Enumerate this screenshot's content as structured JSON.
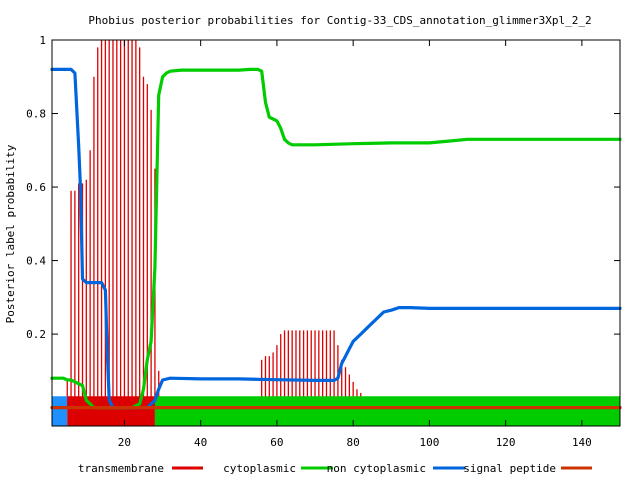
{
  "chart_data": {
    "type": "line",
    "title": "Phobius posterior probabilities for Contig-33_CDS_annotation_glimmer3Xpl_2_2",
    "xlabel": "",
    "ylabel": "Posterior label probability",
    "xlim": [
      1,
      150
    ],
    "ylim": [
      -0.05,
      1.0
    ],
    "x_ticks": [
      20,
      40,
      60,
      80,
      100,
      120,
      140
    ],
    "y_ticks": [
      0.2,
      0.4,
      0.6,
      0.8,
      1
    ],
    "y_tick_labels": [
      "0.2",
      "0.4",
      "0.6",
      "0.8",
      "1"
    ],
    "x_tick_labels": [
      "20",
      "40",
      "60",
      "80",
      "100",
      "120",
      "140"
    ],
    "legend_position": "bottom",
    "series": [
      {
        "name": "transmembrane",
        "style": "impulses",
        "color": "#dd0000",
        "points": [
          [
            5,
            0.08
          ],
          [
            6,
            0.59
          ],
          [
            7,
            0.59
          ],
          [
            8,
            0.61
          ],
          [
            9,
            0.61
          ],
          [
            10,
            0.62
          ],
          [
            11,
            0.7
          ],
          [
            12,
            0.9
          ],
          [
            13,
            0.98
          ],
          [
            14,
            1.0
          ],
          [
            15,
            1.0
          ],
          [
            16,
            1.0
          ],
          [
            17,
            1.0
          ],
          [
            18,
            1.0
          ],
          [
            19,
            1.0
          ],
          [
            20,
            1.0
          ],
          [
            21,
            1.0
          ],
          [
            22,
            1.0
          ],
          [
            23,
            1.0
          ],
          [
            24,
            0.98
          ],
          [
            25,
            0.9
          ],
          [
            26,
            0.88
          ],
          [
            27,
            0.81
          ],
          [
            28,
            0.65
          ],
          [
            29,
            0.1
          ],
          [
            30,
            0.03
          ],
          [
            31,
            0.02
          ],
          [
            32,
            0.02
          ],
          [
            33,
            0.02
          ],
          [
            34,
            0.02
          ],
          [
            35,
            0.02
          ],
          [
            36,
            0.02
          ],
          [
            37,
            0.02
          ],
          [
            38,
            0.02
          ],
          [
            39,
            0.02
          ],
          [
            40,
            0.02
          ],
          [
            41,
            0.02
          ],
          [
            42,
            0.02
          ],
          [
            43,
            0.02
          ],
          [
            44,
            0.02
          ],
          [
            45,
            0.02
          ],
          [
            46,
            0.02
          ],
          [
            47,
            0.02
          ],
          [
            48,
            0.02
          ],
          [
            49,
            0.02
          ],
          [
            50,
            0.02
          ],
          [
            51,
            0.02
          ],
          [
            52,
            0.02
          ],
          [
            53,
            0.02
          ],
          [
            54,
            0.02
          ],
          [
            55,
            0.02
          ],
          [
            56,
            0.13
          ],
          [
            57,
            0.14
          ],
          [
            58,
            0.14
          ],
          [
            59,
            0.15
          ],
          [
            60,
            0.17
          ],
          [
            61,
            0.2
          ],
          [
            62,
            0.21
          ],
          [
            63,
            0.21
          ],
          [
            64,
            0.21
          ],
          [
            65,
            0.21
          ],
          [
            66,
            0.21
          ],
          [
            67,
            0.21
          ],
          [
            68,
            0.21
          ],
          [
            69,
            0.21
          ],
          [
            70,
            0.21
          ],
          [
            71,
            0.21
          ],
          [
            72,
            0.21
          ],
          [
            73,
            0.21
          ],
          [
            74,
            0.21
          ],
          [
            75,
            0.21
          ],
          [
            76,
            0.17
          ],
          [
            77,
            0.13
          ],
          [
            78,
            0.11
          ],
          [
            79,
            0.09
          ],
          [
            80,
            0.07
          ],
          [
            81,
            0.05
          ],
          [
            82,
            0.04
          ],
          [
            83,
            0.03
          ],
          [
            84,
            0.02
          ],
          [
            85,
            0.02
          ],
          [
            86,
            0.02
          ],
          [
            87,
            0.02
          ],
          [
            88,
            0.02
          ],
          [
            89,
            0.02
          ],
          [
            90,
            0.02
          ],
          [
            91,
            0.02
          ],
          [
            92,
            0.02
          ],
          [
            93,
            0.02
          ],
          [
            94,
            0.02
          ],
          [
            95,
            0.02
          ],
          [
            96,
            0.02
          ],
          [
            97,
            0.02
          ],
          [
            98,
            0.02
          ],
          [
            99,
            0.02
          ],
          [
            100,
            0.02
          ],
          [
            101,
            0.02
          ],
          [
            102,
            0.02
          ],
          [
            103,
            0.02
          ],
          [
            104,
            0.02
          ],
          [
            105,
            0.01
          ],
          [
            106,
            0.01
          ],
          [
            107,
            0.01
          ],
          [
            108,
            0.01
          ]
        ]
      },
      {
        "name": "cytoplasmic",
        "style": "line",
        "color": "#00cc00",
        "points": [
          [
            1,
            0.08
          ],
          [
            4,
            0.08
          ],
          [
            5,
            0.075
          ],
          [
            6,
            0.075
          ],
          [
            7,
            0.07
          ],
          [
            9,
            0.06
          ],
          [
            10,
            0.02
          ],
          [
            11,
            0.01
          ],
          [
            12,
            0.0
          ],
          [
            22,
            0.0
          ],
          [
            24,
            0.01
          ],
          [
            25,
            0.05
          ],
          [
            26,
            0.13
          ],
          [
            27,
            0.18
          ],
          [
            28,
            0.38
          ],
          [
            29,
            0.85
          ],
          [
            30,
            0.9
          ],
          [
            31,
            0.91
          ],
          [
            32,
            0.915
          ],
          [
            35,
            0.918
          ],
          [
            40,
            0.918
          ],
          [
            45,
            0.918
          ],
          [
            50,
            0.918
          ],
          [
            53,
            0.92
          ],
          [
            55,
            0.92
          ],
          [
            56,
            0.915
          ],
          [
            57,
            0.83
          ],
          [
            58,
            0.79
          ],
          [
            59,
            0.785
          ],
          [
            60,
            0.78
          ],
          [
            61,
            0.76
          ],
          [
            62,
            0.73
          ],
          [
            63,
            0.72
          ],
          [
            64,
            0.715
          ],
          [
            70,
            0.715
          ],
          [
            80,
            0.718
          ],
          [
            90,
            0.72
          ],
          [
            100,
            0.72
          ],
          [
            105,
            0.725
          ],
          [
            110,
            0.73
          ],
          [
            120,
            0.73
          ],
          [
            130,
            0.73
          ],
          [
            140,
            0.73
          ],
          [
            150,
            0.73
          ]
        ]
      },
      {
        "name": "non cytoplasmic",
        "style": "line",
        "color": "#0066dd",
        "points": [
          [
            1,
            0.92
          ],
          [
            6,
            0.92
          ],
          [
            7,
            0.91
          ],
          [
            8,
            0.71
          ],
          [
            8.5,
            0.59
          ],
          [
            9,
            0.35
          ],
          [
            10,
            0.34
          ],
          [
            14,
            0.34
          ],
          [
            15,
            0.32
          ],
          [
            15.5,
            0.15
          ],
          [
            16,
            0.02
          ],
          [
            17,
            0.0
          ],
          [
            26,
            0.0
          ],
          [
            28,
            0.02
          ],
          [
            29,
            0.05
          ],
          [
            30,
            0.075
          ],
          [
            32,
            0.08
          ],
          [
            40,
            0.078
          ],
          [
            50,
            0.078
          ],
          [
            60,
            0.076
          ],
          [
            70,
            0.074
          ],
          [
            75,
            0.074
          ],
          [
            76,
            0.08
          ],
          [
            77,
            0.12
          ],
          [
            78,
            0.14
          ],
          [
            79,
            0.16
          ],
          [
            80,
            0.18
          ],
          [
            82,
            0.2
          ],
          [
            84,
            0.22
          ],
          [
            86,
            0.24
          ],
          [
            88,
            0.26
          ],
          [
            90,
            0.265
          ],
          [
            92,
            0.272
          ],
          [
            95,
            0.272
          ],
          [
            100,
            0.27
          ],
          [
            110,
            0.27
          ],
          [
            120,
            0.27
          ],
          [
            130,
            0.27
          ],
          [
            140,
            0.27
          ],
          [
            150,
            0.27
          ]
        ]
      },
      {
        "name": "signal peptide",
        "style": "line",
        "color": "#cc3300",
        "points": [
          [
            1,
            0.0
          ],
          [
            150,
            0.0
          ]
        ]
      }
    ],
    "topology_bands": [
      {
        "color": "#1e90ff",
        "x_start": 1,
        "x_end": 5,
        "y": -0.01
      },
      {
        "color": "#dd0000",
        "x_start": 5,
        "x_end": 28,
        "y": -0.01
      },
      {
        "color": "#00cc00",
        "x_start": 28,
        "x_end": 150,
        "y": -0.01
      }
    ]
  }
}
